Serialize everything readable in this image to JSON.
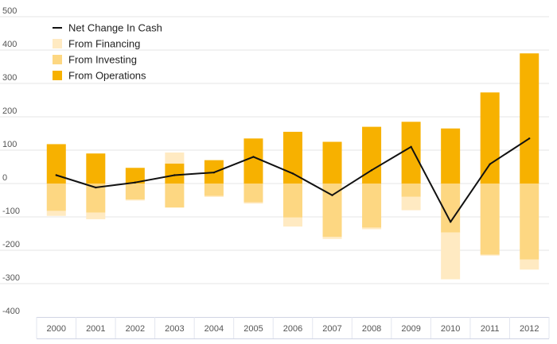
{
  "chart_data": {
    "type": "bar",
    "categories": [
      "2000",
      "2001",
      "2002",
      "2003",
      "2004",
      "2005",
      "2006",
      "2007",
      "2008",
      "2009",
      "2010",
      "2011",
      "2012"
    ],
    "series": [
      {
        "name": "From Operations",
        "kind": "stacked-bar",
        "color": "#F7B100",
        "values": [
          118,
          90,
          47,
          60,
          70,
          135,
          155,
          125,
          170,
          185,
          165,
          273,
          390
        ]
      },
      {
        "name": "From Investing",
        "kind": "stacked-bar",
        "color": "#FDD782",
        "values": [
          -82,
          -87,
          -48,
          -72,
          -37,
          -56,
          -102,
          -160,
          -132,
          -40,
          -147,
          -213,
          -228
        ]
      },
      {
        "name": "From Financing",
        "kind": "stacked-bar",
        "color": "#FFEAC2",
        "values": [
          -15,
          -20,
          -3,
          33,
          -3,
          -4,
          -27,
          -6,
          -5,
          -40,
          -140,
          -3,
          -30
        ]
      },
      {
        "name": "Net Change In Cash",
        "kind": "line",
        "color": "#111111",
        "values": [
          25,
          -12,
          3,
          25,
          33,
          80,
          30,
          -35,
          40,
          110,
          -115,
          58,
          135
        ]
      }
    ],
    "ylim": [
      -400,
      500
    ],
    "yticks": [
      -400,
      -300,
      -200,
      -100,
      0,
      100,
      200,
      300,
      400,
      500
    ],
    "grid": true,
    "legend": {
      "position": "top-left",
      "entries": [
        "Net Change In Cash",
        "From Financing",
        "From Investing",
        "From Operations"
      ]
    },
    "title": "",
    "xlabel": "",
    "ylabel": ""
  }
}
